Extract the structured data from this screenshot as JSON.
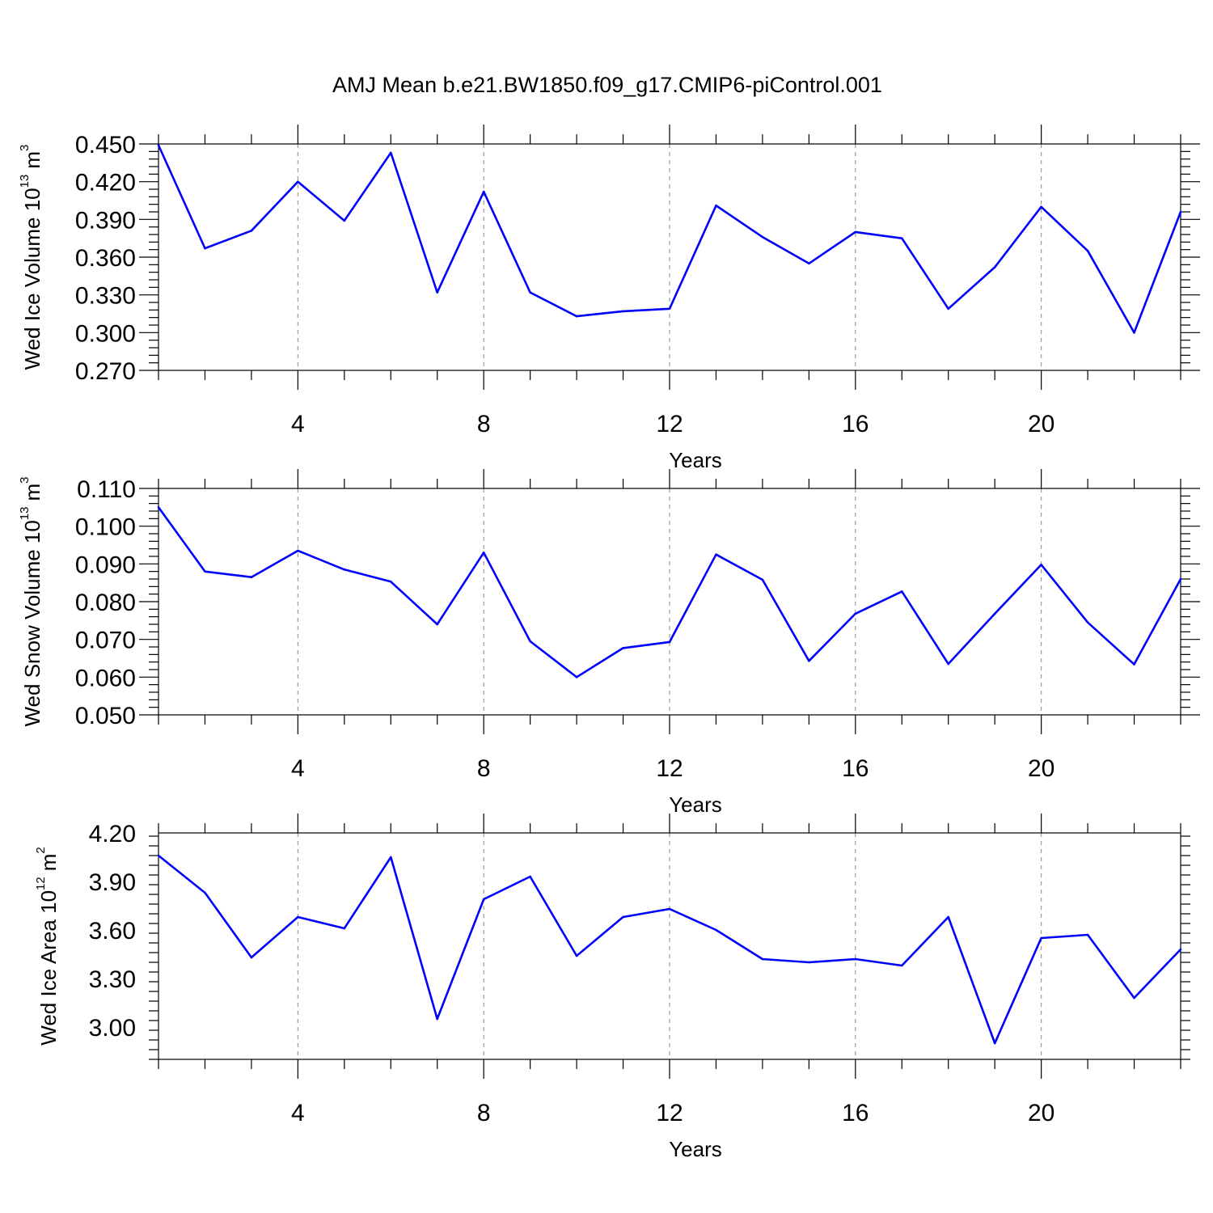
{
  "title": "AMJ Mean b.e21.BW1850.f09_g17.CMIP6-piControl.001",
  "colors": {
    "line": "#0000ff",
    "grid": "#888888",
    "axis": "#000000"
  },
  "chart_data": [
    {
      "type": "line",
      "xlabel": "Years",
      "ylabel_main": "Wed Ice Volume 10",
      "ylabel_exp": "13",
      "ylabel_unit": "m",
      "ylabel_unit_exp": "3",
      "xlim": [
        1,
        23
      ],
      "ylim": [
        0.27,
        0.45
      ],
      "x_ticks": [
        4,
        8,
        12,
        16,
        20
      ],
      "y_ticks": [
        "0.270",
        "0.300",
        "0.330",
        "0.360",
        "0.390",
        "0.420",
        "0.450"
      ],
      "grid": "vertical dashed at major x ticks",
      "x": [
        1,
        2,
        3,
        4,
        5,
        6,
        7,
        8,
        9,
        10,
        11,
        12,
        13,
        14,
        15,
        16,
        17,
        18,
        19,
        20,
        21,
        22,
        23
      ],
      "values": [
        0.449,
        0.367,
        0.381,
        0.42,
        0.389,
        0.443,
        0.332,
        0.412,
        0.332,
        0.313,
        0.317,
        0.319,
        0.401,
        0.376,
        0.355,
        0.38,
        0.375,
        0.319,
        0.352,
        0.4,
        0.365,
        0.3,
        0.396
      ]
    },
    {
      "type": "line",
      "xlabel": "Years",
      "ylabel_main": "Wed Snow Volume 10",
      "ylabel_exp": "13",
      "ylabel_unit": "m",
      "ylabel_unit_exp": "3",
      "xlim": [
        1,
        23
      ],
      "ylim": [
        0.05,
        0.11
      ],
      "x_ticks": [
        4,
        8,
        12,
        16,
        20
      ],
      "y_ticks": [
        "0.050",
        "0.060",
        "0.070",
        "0.080",
        "0.090",
        "0.100",
        "0.110"
      ],
      "grid": "vertical dashed at major x ticks",
      "x": [
        1,
        2,
        3,
        4,
        5,
        6,
        7,
        8,
        9,
        10,
        11,
        12,
        13,
        14,
        15,
        16,
        17,
        18,
        19,
        20,
        21,
        22,
        23
      ],
      "values": [
        0.105,
        0.088,
        0.0865,
        0.0935,
        0.0885,
        0.0853,
        0.074,
        0.093,
        0.0695,
        0.06,
        0.0677,
        0.0693,
        0.0925,
        0.0858,
        0.0643,
        0.0768,
        0.0827,
        0.0635,
        0.0768,
        0.0898,
        0.0745,
        0.0634,
        0.086
      ]
    },
    {
      "type": "line",
      "xlabel": "Years",
      "ylabel_main": "Wed Ice Area 10",
      "ylabel_exp": "12",
      "ylabel_unit": "m",
      "ylabel_unit_exp": "2",
      "xlim": [
        1,
        23
      ],
      "ylim": [
        2.8,
        4.2
      ],
      "x_ticks": [
        4,
        8,
        12,
        16,
        20
      ],
      "y_ticks": [
        "3.00",
        "3.30",
        "3.60",
        "3.90",
        "4.20"
      ],
      "grid": "vertical dashed at major x ticks",
      "x": [
        1,
        2,
        3,
        4,
        5,
        6,
        7,
        8,
        9,
        10,
        11,
        12,
        13,
        14,
        15,
        16,
        17,
        18,
        19,
        20,
        21,
        22,
        23
      ],
      "values": [
        4.06,
        3.83,
        3.43,
        3.68,
        3.61,
        4.05,
        3.05,
        3.79,
        3.93,
        3.44,
        3.68,
        3.73,
        3.6,
        3.42,
        3.4,
        3.42,
        3.38,
        3.68,
        2.9,
        3.55,
        3.57,
        3.18,
        3.48
      ]
    }
  ]
}
